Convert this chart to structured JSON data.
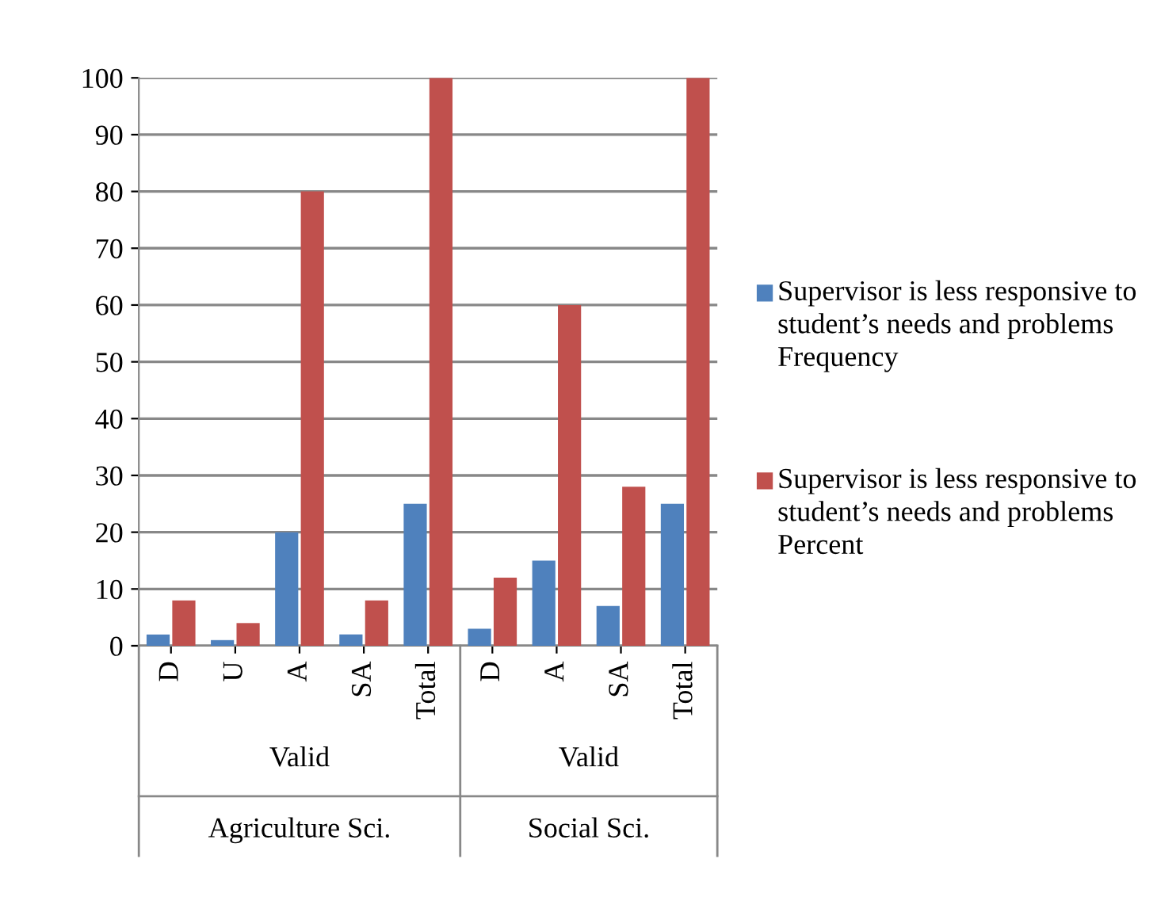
{
  "chart_data": {
    "type": "bar",
    "categories": [
      "D",
      "U",
      "A",
      "SA",
      "Total",
      "D",
      "A",
      "SA",
      "Total"
    ],
    "series": [
      {
        "name": "Supervisor is less responsive to student’s needs and problems Frequency",
        "color": "#4f81bd",
        "values": [
          2,
          1,
          20,
          2,
          25,
          3,
          15,
          7,
          25
        ]
      },
      {
        "name": "Supervisor is less responsive to student’s needs and problems Percent",
        "color": "#c0504d",
        "values": [
          8,
          4,
          80,
          8,
          100,
          12,
          60,
          28,
          100
        ]
      }
    ],
    "ylim": [
      0,
      100
    ],
    "yticks": [
      0,
      10,
      20,
      30,
      40,
      50,
      60,
      70,
      80,
      90,
      100
    ],
    "grid": "y",
    "legend": "right",
    "annotations": [
      "Valid",
      "Agriculture Sci.",
      "Valid",
      "Social Sci."
    ]
  }
}
